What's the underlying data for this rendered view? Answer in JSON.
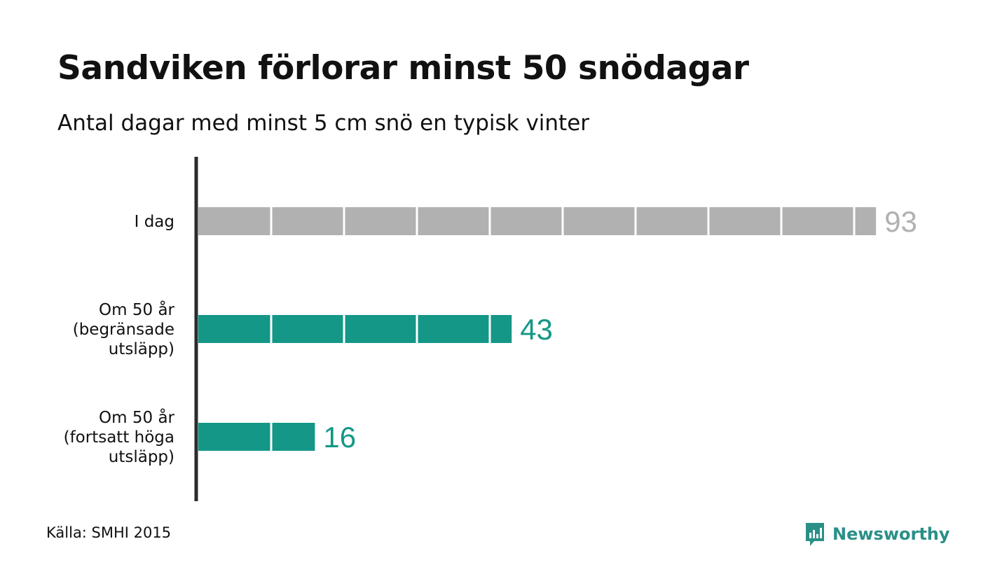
{
  "title": "Sandviken förlorar minst 50 snödagar",
  "subtitle": "Antal dagar med minst 5 cm snö en typisk vinter",
  "source": "Källa: SMHI 2015",
  "brand": {
    "name": "Newsworthy",
    "icon": "newsworthy-logo-icon"
  },
  "colors": {
    "today": "#b1b1b1",
    "future": "#149787",
    "axis": "#2b2b2b",
    "brand": "#2a8f87"
  },
  "chart_data": {
    "type": "bar",
    "orientation": "horizontal",
    "title": "Sandviken förlorar minst 50 snödagar",
    "subtitle": "Antal dagar med minst 5 cm snö en typisk vinter",
    "categories": [
      [
        "I dag"
      ],
      [
        "Om 50 år",
        "(begränsade",
        "utsläpp)"
      ],
      [
        "Om 50 år",
        "(fortsatt höga",
        "utsläpp)"
      ]
    ],
    "values": [
      93,
      43,
      16
    ],
    "value_labels": [
      "93",
      "43",
      "16"
    ],
    "bar_colors": [
      "#b1b1b1",
      "#149787",
      "#149787"
    ],
    "segment_size": 10,
    "xlim": [
      0,
      93
    ],
    "grid": false,
    "legend": "none"
  }
}
